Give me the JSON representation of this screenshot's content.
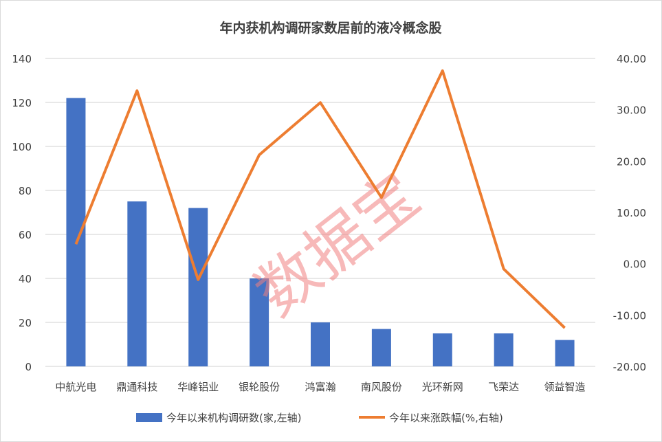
{
  "chart_data": {
    "type": "bar+line",
    "title": "年内获机构调研家数居前的液冷概念股",
    "categories": [
      "中航光电",
      "鼎通科技",
      "华峰铝业",
      "银轮股份",
      "鸿富瀚",
      "南风股份",
      "光环新网",
      "飞荣达",
      "领益智造"
    ],
    "series": [
      {
        "name": "今年以来机构调研数(家,左轴)",
        "type": "bar",
        "axis": "left",
        "color": "#4472C4",
        "values": [
          122,
          75,
          72,
          40,
          20,
          17,
          15,
          15,
          12
        ]
      },
      {
        "name": "今年以来涨跌幅(%,右轴)",
        "type": "line",
        "axis": "right",
        "color": "#ED7D31",
        "values": [
          3.8,
          33.7,
          -3.1,
          21.2,
          31.4,
          12.9,
          37.6,
          -1.0,
          -12.5
        ]
      }
    ],
    "left_axis": {
      "ylim": [
        0,
        140
      ],
      "ticks": [
        "0",
        "20",
        "40",
        "60",
        "80",
        "100",
        "120",
        "140"
      ]
    },
    "right_axis": {
      "ylim": [
        -20,
        40
      ],
      "ticks": [
        "-20.00",
        "-10.00",
        "0.00",
        "10.00",
        "20.00",
        "30.00",
        "40.00"
      ]
    },
    "grid": true,
    "legend": "bottom",
    "watermark": "数据宝"
  }
}
